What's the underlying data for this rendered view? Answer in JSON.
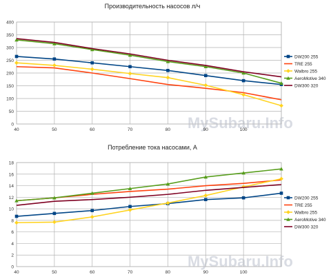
{
  "watermark": "MySubaru.Info",
  "chart_data": [
    {
      "type": "line",
      "title": "Производительность насосов л/ч",
      "xlabel": "",
      "ylabel": "",
      "x": [
        40,
        50,
        60,
        70,
        80,
        90,
        100,
        110
      ],
      "xticks": [
        "40",
        "50",
        "60",
        "70",
        "80",
        "90",
        "100",
        ""
      ],
      "ylim": [
        0,
        400
      ],
      "yticks": [
        "0",
        "50",
        "100",
        "150",
        "200",
        "250",
        "300",
        "350",
        "400"
      ],
      "ytick_values": [
        0,
        50,
        100,
        150,
        200,
        250,
        300,
        350,
        400
      ],
      "grid": true,
      "legend": "right",
      "series": [
        {
          "name": "DW200 255",
          "color": "#004586",
          "marker": "square",
          "values": [
            265,
            255,
            240,
            225,
            210,
            190,
            170,
            155
          ]
        },
        {
          "name": "TRE 255",
          "color": "#ff420e",
          "marker": "none",
          "values": [
            225,
            220,
            200,
            178,
            155,
            140,
            123,
            95
          ]
        },
        {
          "name": "Walbro 255",
          "color": "#ffd320",
          "marker": "diamond",
          "values": [
            240,
            230,
            215,
            198,
            182,
            152,
            115,
            72
          ]
        },
        {
          "name": "AeroMotive 340",
          "color": "#579d1c",
          "marker": "triangle",
          "values": [
            330,
            315,
            292,
            270,
            245,
            225,
            200,
            160
          ]
        },
        {
          "name": "DW300 320",
          "color": "#7e0021",
          "marker": "none",
          "values": [
            335,
            320,
            296,
            275,
            250,
            230,
            205,
            185
          ]
        }
      ]
    },
    {
      "type": "line",
      "title": "Потребление тока насосами, А",
      "xlabel": "",
      "ylabel": "",
      "x": [
        40,
        50,
        60,
        70,
        80,
        90,
        100,
        110
      ],
      "xticks": [
        "40",
        "50",
        "60",
        "70",
        "80",
        "90",
        "100",
        ""
      ],
      "ylim": [
        0,
        18
      ],
      "yticks": [
        "0",
        "2",
        "4",
        "6",
        "8",
        "10",
        "12",
        "14",
        "16",
        "18"
      ],
      "ytick_values": [
        0,
        2,
        4,
        6,
        8,
        10,
        12,
        14,
        16,
        18
      ],
      "grid": true,
      "legend": "right",
      "series": [
        {
          "name": "DW200 255",
          "color": "#004586",
          "marker": "square",
          "values": [
            8.7,
            9.2,
            9.7,
            10.4,
            10.9,
            11.6,
            11.9,
            12.7
          ]
        },
        {
          "name": "TRE 255",
          "color": "#ff420e",
          "marker": "none",
          "values": [
            11.4,
            11.9,
            12.5,
            13.0,
            13.4,
            14.0,
            14.4,
            15.0
          ]
        },
        {
          "name": "Walbro 255",
          "color": "#ffd320",
          "marker": "diamond",
          "values": [
            7.6,
            7.7,
            8.6,
            9.8,
            11.0,
            12.3,
            13.8,
            15.2
          ]
        },
        {
          "name": "AeroMotive 340",
          "color": "#579d1c",
          "marker": "triangle",
          "values": [
            11.4,
            11.9,
            12.7,
            13.5,
            14.3,
            15.5,
            16.2,
            16.9
          ]
        },
        {
          "name": "DW300 320",
          "color": "#7e0021",
          "marker": "none",
          "values": [
            10.6,
            11.3,
            11.6,
            12.0,
            12.5,
            13.2,
            13.7,
            14.2
          ]
        }
      ]
    }
  ]
}
